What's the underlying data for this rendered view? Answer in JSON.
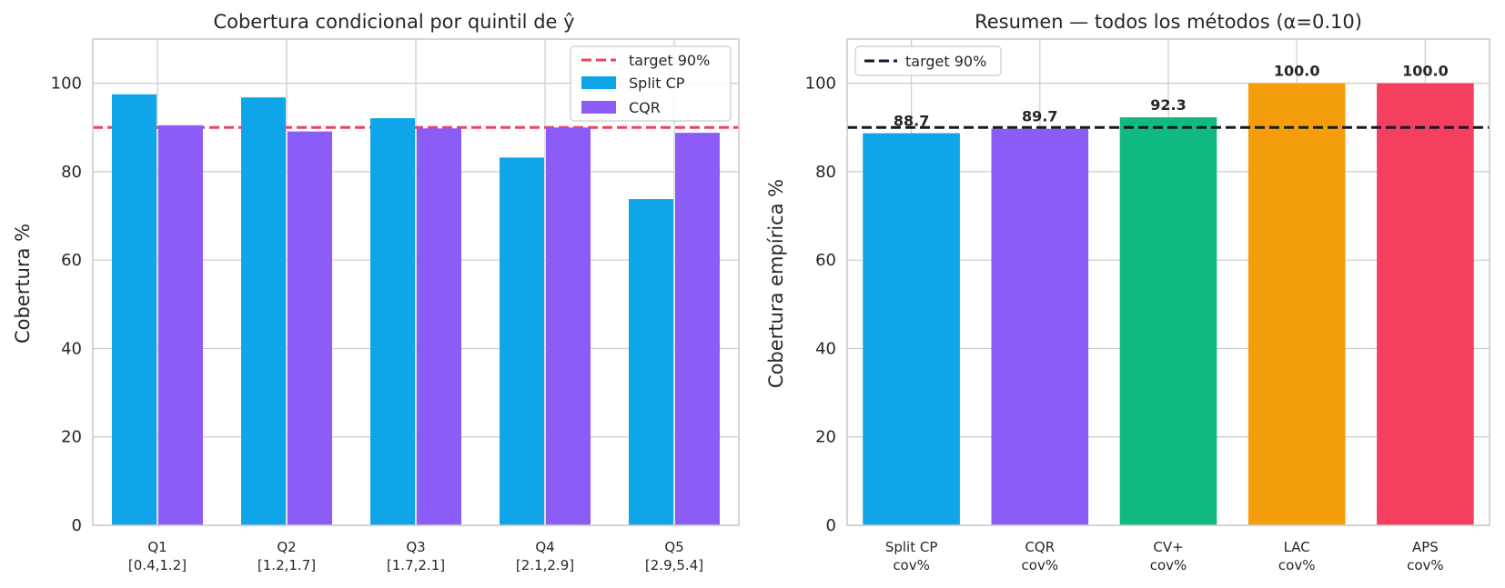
{
  "chart_data": [
    {
      "type": "bar",
      "title": "Cobertura condicional por quintil de ŷ",
      "ylabel": "Cobertura %",
      "xlabel": "",
      "ylim": [
        0,
        110
      ],
      "yticks": [
        0,
        20,
        40,
        60,
        80,
        100
      ],
      "grid": true,
      "legend_position": "top-right",
      "categories": [
        "Q1",
        "Q2",
        "Q3",
        "Q4",
        "Q5"
      ],
      "category_ranges": [
        "[0.4,1.2]",
        "[1.2,1.7]",
        "[1.7,2.1]",
        "[2.1,2.9]",
        "[2.9,5.4]"
      ],
      "series": [
        {
          "name": "Split CP",
          "color": "#0ea5e9",
          "values": [
            97.5,
            96.8,
            92.1,
            83.2,
            73.8
          ]
        },
        {
          "name": "CQR",
          "color": "#8b5cf6",
          "values": [
            90.5,
            89.1,
            89.8,
            90.0,
            88.8
          ]
        }
      ],
      "reference_line": {
        "name": "target 90%",
        "value": 90,
        "color": "#f43f5e",
        "style": "dashed"
      }
    },
    {
      "type": "bar",
      "title": "Resumen — todos los métodos (α=0.10)",
      "ylabel": "Cobertura empírica %",
      "xlabel": "",
      "ylim": [
        0,
        110
      ],
      "yticks": [
        0,
        20,
        40,
        60,
        80,
        100
      ],
      "grid": true,
      "legend_position": "top-left",
      "categories": [
        "Split CP",
        "CQR",
        "CV+",
        "LAC",
        "APS"
      ],
      "category_sublabels": [
        "cov%",
        "cov%",
        "cov%",
        "cov%",
        "cov%"
      ],
      "values": [
        88.7,
        89.7,
        92.3,
        100.0,
        100.0
      ],
      "value_labels": [
        "88.7",
        "89.7",
        "92.3",
        "100.0",
        "100.0"
      ],
      "colors": [
        "#0ea5e9",
        "#8b5cf6",
        "#10b981",
        "#f59e0b",
        "#f43f5e"
      ],
      "reference_line": {
        "name": "target 90%",
        "value": 90,
        "color": "#111827",
        "style": "dashed"
      }
    }
  ]
}
